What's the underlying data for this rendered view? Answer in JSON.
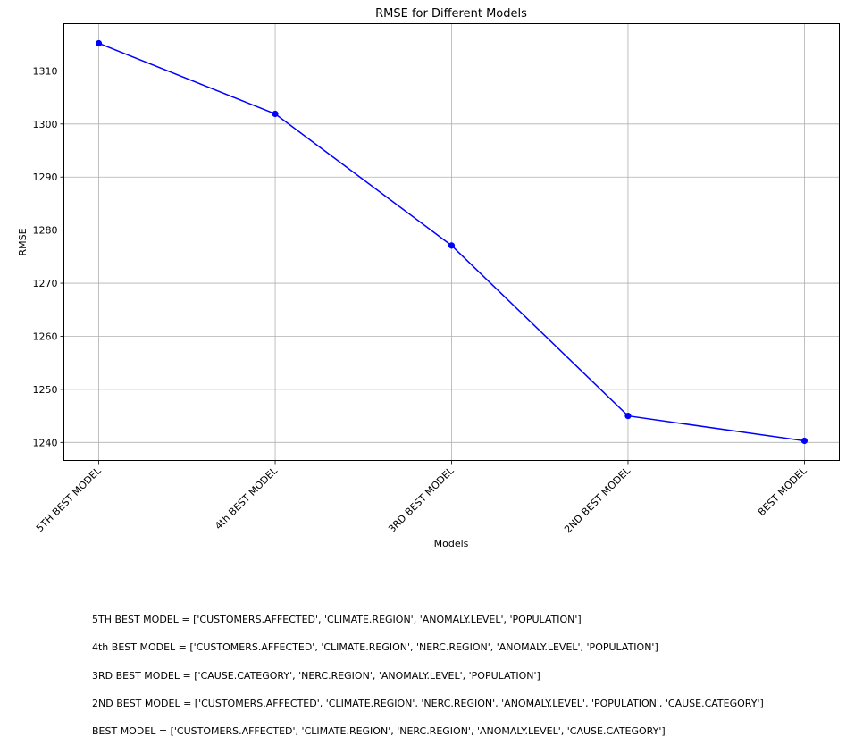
{
  "chart_data": {
    "type": "line",
    "title": "RMSE for Different Models",
    "xlabel": "Models",
    "ylabel": "RMSE",
    "categories": [
      "5TH BEST MODEL",
      "4th BEST MODEL",
      "3RD BEST MODEL",
      "2ND BEST MODEL",
      "BEST MODEL"
    ],
    "series": [
      {
        "values": [
          1315.2,
          1301.9,
          1277.1,
          1245.0,
          1240.3
        ]
      }
    ],
    "ylim": [
      1236.6,
      1318.9
    ],
    "yticks": [
      1240,
      1250,
      1260,
      1270,
      1280,
      1290,
      1300,
      1310
    ],
    "grid": true,
    "marker": "circle",
    "color": "#0000ff"
  },
  "notes": [
    "5TH BEST MODEL = ['CUSTOMERS.AFFECTED', 'CLIMATE.REGION', 'ANOMALY.LEVEL', 'POPULATION']",
    "4th BEST MODEL = ['CUSTOMERS.AFFECTED', 'CLIMATE.REGION', 'NERC.REGION', 'ANOMALY.LEVEL', 'POPULATION']",
    "3RD BEST MODEL = ['CAUSE.CATEGORY', 'NERC.REGION', 'ANOMALY.LEVEL', 'POPULATION']",
    "2ND BEST MODEL = ['CUSTOMERS.AFFECTED', 'CLIMATE.REGION', 'NERC.REGION', 'ANOMALY.LEVEL', 'POPULATION', 'CAUSE.CATEGORY']",
    "BEST MODEL = ['CUSTOMERS.AFFECTED', 'CLIMATE.REGION', 'NERC.REGION', 'ANOMALY.LEVEL', 'CAUSE.CATEGORY']"
  ]
}
